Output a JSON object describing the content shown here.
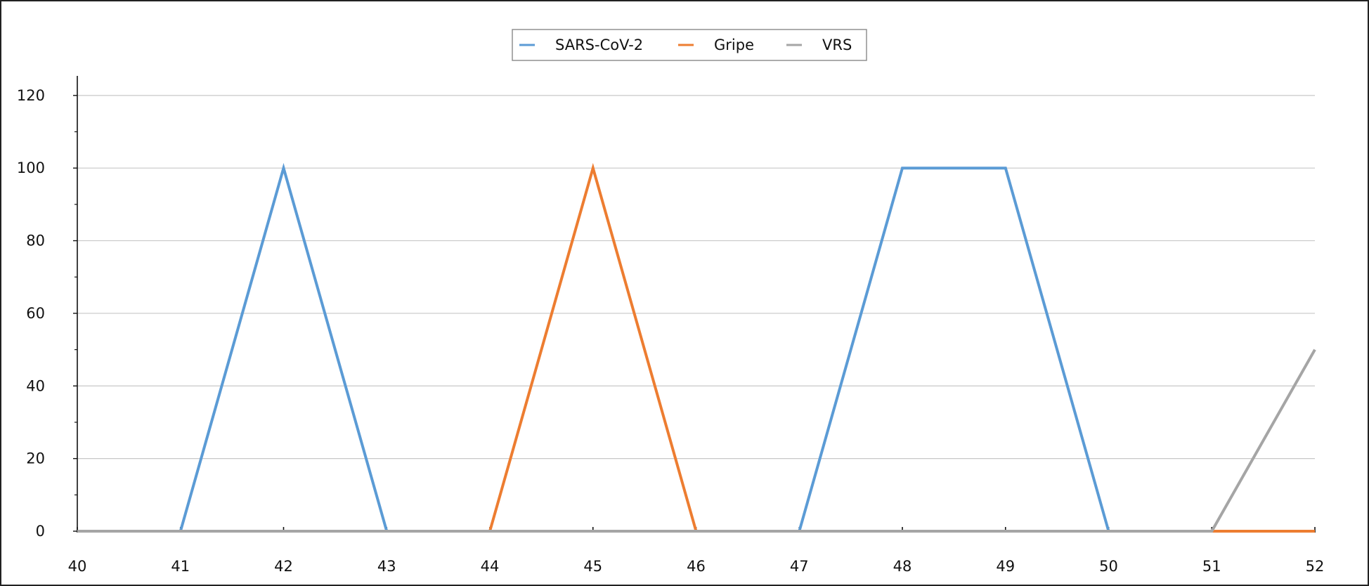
{
  "chart_data": {
    "type": "line",
    "title": "",
    "xlabel": "",
    "ylabel": "",
    "xlim": [
      40,
      52
    ],
    "ylim": [
      0,
      125
    ],
    "x_ticks": [
      40,
      41,
      42,
      43,
      44,
      45,
      46,
      47,
      48,
      49,
      50,
      51,
      52
    ],
    "y_ticks": [
      0,
      20,
      40,
      60,
      80,
      100,
      120
    ],
    "grid": true,
    "legend": "top-center",
    "x": [
      40,
      41,
      42,
      43,
      44,
      45,
      46,
      47,
      48,
      49,
      50,
      51,
      52
    ],
    "series": [
      {
        "name": "SARS-CoV-2",
        "color": "#5b9bd5",
        "values": [
          0,
          0,
          100,
          0,
          0,
          0,
          0,
          0,
          100,
          100,
          0,
          0,
          0
        ]
      },
      {
        "name": "Gripe",
        "color": "#ed7d31",
        "values": [
          0,
          0,
          0,
          0,
          0,
          100,
          0,
          0,
          0,
          0,
          0,
          0,
          0
        ]
      },
      {
        "name": "VRS",
        "color": "#a5a5a5",
        "values": [
          0,
          0,
          0,
          0,
          0,
          0,
          0,
          0,
          0,
          0,
          0,
          0,
          50
        ]
      }
    ]
  }
}
